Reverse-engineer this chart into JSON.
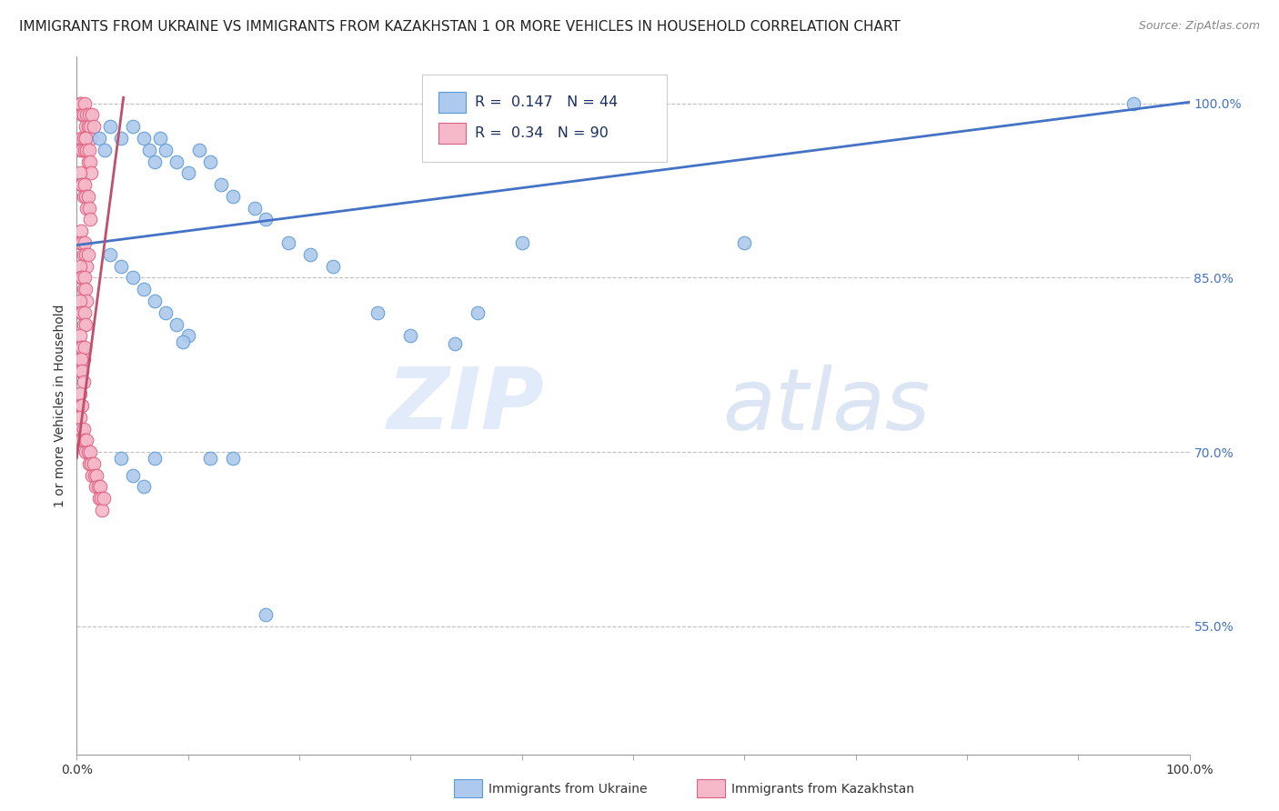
{
  "title": "IMMIGRANTS FROM UKRAINE VS IMMIGRANTS FROM KAZAKHSTAN 1 OR MORE VEHICLES IN HOUSEHOLD CORRELATION CHART",
  "source": "Source: ZipAtlas.com",
  "ylabel": "1 or more Vehicles in Household",
  "y_tick_labels_right": [
    "100.0%",
    "85.0%",
    "70.0%",
    "55.0%"
  ],
  "y_tick_positions_right": [
    1.0,
    0.85,
    0.7,
    0.55
  ],
  "xlim": [
    0.0,
    1.0
  ],
  "ylim": [
    0.44,
    1.04
  ],
  "ukraine_color": "#adc9ed",
  "ukraine_edge": "#5b9bd5",
  "kazakhstan_color": "#f4b8c8",
  "kazakhstan_edge": "#e06080",
  "trend_color": "#4472c4",
  "kaz_trend_color": "#c0506a",
  "R_ukraine": 0.147,
  "N_ukraine": 44,
  "R_kazakhstan": 0.34,
  "N_kazakhstan": 90,
  "watermark_zip": "ZIP",
  "watermark_atlas": "atlas",
  "trend_x_start": 0.0,
  "trend_x_end": 1.0,
  "trend_y_start": 0.878,
  "trend_y_end": 1.001,
  "kaz_trend_x_start": 0.0,
  "kaz_trend_x_end": 0.042,
  "kaz_trend_y_start": 0.695,
  "kaz_trend_y_end": 1.005,
  "title_fontsize": 11,
  "source_fontsize": 9,
  "ukr_x": [
    0.02,
    0.025,
    0.03,
    0.04,
    0.05,
    0.06,
    0.065,
    0.07,
    0.075,
    0.08,
    0.09,
    0.1,
    0.11,
    0.12,
    0.13,
    0.14,
    0.16,
    0.17,
    0.19,
    0.21,
    0.23,
    0.27,
    0.3,
    0.34,
    0.36,
    0.4,
    0.6,
    0.95,
    0.03,
    0.04,
    0.05,
    0.06,
    0.07,
    0.08,
    0.09,
    0.1,
    0.04,
    0.05,
    0.06,
    0.07,
    0.095,
    0.12,
    0.14,
    0.17
  ],
  "ukr_y": [
    0.97,
    0.96,
    0.98,
    0.97,
    0.98,
    0.97,
    0.96,
    0.95,
    0.97,
    0.96,
    0.95,
    0.94,
    0.96,
    0.95,
    0.93,
    0.92,
    0.91,
    0.9,
    0.88,
    0.87,
    0.86,
    0.82,
    0.8,
    0.793,
    0.82,
    0.88,
    0.88,
    1.0,
    0.87,
    0.86,
    0.85,
    0.84,
    0.83,
    0.82,
    0.81,
    0.8,
    0.695,
    0.68,
    0.67,
    0.695,
    0.795,
    0.695,
    0.695,
    0.56
  ],
  "kaz_x": [
    0.003,
    0.004,
    0.005,
    0.006,
    0.007,
    0.008,
    0.009,
    0.01,
    0.011,
    0.012,
    0.013,
    0.014,
    0.015,
    0.003,
    0.004,
    0.005,
    0.006,
    0.007,
    0.008,
    0.009,
    0.01,
    0.011,
    0.012,
    0.013,
    0.003,
    0.004,
    0.005,
    0.006,
    0.007,
    0.008,
    0.009,
    0.01,
    0.011,
    0.012,
    0.003,
    0.004,
    0.005,
    0.006,
    0.007,
    0.008,
    0.009,
    0.01,
    0.003,
    0.004,
    0.005,
    0.006,
    0.007,
    0.008,
    0.009,
    0.003,
    0.004,
    0.005,
    0.006,
    0.007,
    0.008,
    0.003,
    0.004,
    0.005,
    0.006,
    0.007,
    0.003,
    0.004,
    0.005,
    0.006,
    0.003,
    0.004,
    0.005,
    0.003,
    0.004,
    0.003,
    0.005,
    0.006,
    0.007,
    0.008,
    0.009,
    0.01,
    0.011,
    0.012,
    0.013,
    0.014,
    0.015,
    0.016,
    0.017,
    0.018,
    0.019,
    0.02,
    0.021,
    0.022,
    0.023,
    0.024
  ],
  "kaz_y": [
    1.0,
    1.0,
    0.99,
    0.99,
    1.0,
    0.98,
    0.99,
    0.98,
    0.99,
    0.98,
    0.97,
    0.99,
    0.98,
    0.96,
    0.97,
    0.96,
    0.97,
    0.96,
    0.97,
    0.96,
    0.95,
    0.96,
    0.95,
    0.94,
    0.94,
    0.93,
    0.93,
    0.92,
    0.93,
    0.92,
    0.91,
    0.92,
    0.91,
    0.9,
    0.88,
    0.89,
    0.88,
    0.87,
    0.88,
    0.87,
    0.86,
    0.87,
    0.86,
    0.85,
    0.85,
    0.84,
    0.85,
    0.84,
    0.83,
    0.83,
    0.82,
    0.82,
    0.81,
    0.82,
    0.81,
    0.8,
    0.79,
    0.79,
    0.78,
    0.79,
    0.77,
    0.78,
    0.77,
    0.76,
    0.75,
    0.74,
    0.74,
    0.73,
    0.72,
    0.71,
    0.71,
    0.72,
    0.71,
    0.7,
    0.71,
    0.7,
    0.69,
    0.7,
    0.69,
    0.68,
    0.69,
    0.68,
    0.67,
    0.68,
    0.67,
    0.66,
    0.67,
    0.66,
    0.65,
    0.66
  ]
}
